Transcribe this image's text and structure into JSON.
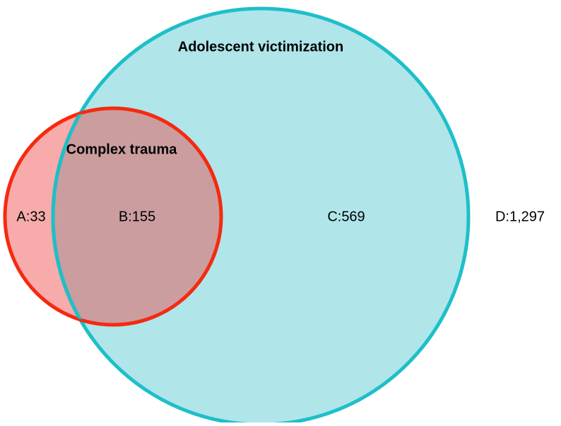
{
  "sets": [
    {
      "label": "Adolescent victimization"
    },
    {
      "label": "Complex trauma"
    }
  ],
  "regions": [
    {
      "label": "A:33"
    },
    {
      "label": "B:155"
    },
    {
      "label": "C:569"
    },
    {
      "label": "D:1,297"
    }
  ]
}
